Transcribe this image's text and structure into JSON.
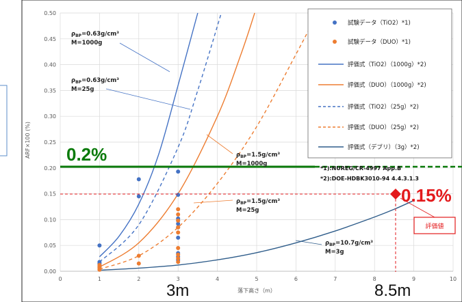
{
  "chart_data": {
    "type": "scatter",
    "xlabel": "落下高さ（m）",
    "ylabel": "ARF×100 (%)",
    "xlim": [
      0,
      10
    ],
    "ylim": [
      0,
      0.5
    ],
    "x_ticks": [
      "0",
      "1",
      "2",
      "3",
      "4",
      "5",
      "6",
      "7",
      "8",
      "9",
      "10"
    ],
    "y_ticks": [
      "0.00",
      "0.05",
      "0.10",
      "0.15",
      "0.20",
      "0.25",
      "0.30",
      "0.35",
      "0.40",
      "0.45",
      "0.50"
    ],
    "grid": true,
    "legend_position": "top-right",
    "colors": {
      "tio2": "#4472C4",
      "duo": "#ED7D31",
      "debris": "#2E5C8A",
      "threshold_green": "#0A7A0A",
      "red": "#E31A1C"
    },
    "series": [
      {
        "name": "試験データ（TiO2）*1)",
        "kind": "points",
        "color": "#4472C4",
        "points": [
          [
            1,
            0.05
          ],
          [
            1,
            0.018
          ],
          [
            1,
            0.015
          ],
          [
            1,
            0.012
          ],
          [
            1,
            0.008
          ],
          [
            2,
            0.178
          ],
          [
            2,
            0.145
          ],
          [
            3,
            0.193
          ],
          [
            3,
            0.148
          ],
          [
            3,
            0.102
          ],
          [
            3,
            0.098
          ],
          [
            3,
            0.092
          ],
          [
            3,
            0.085
          ],
          [
            3,
            0.065
          ],
          [
            3,
            0.035
          ],
          [
            3,
            0.028
          ],
          [
            3,
            0.022
          ]
        ]
      },
      {
        "name": "試験データ（DUO）*1)",
        "kind": "points",
        "color": "#ED7D31",
        "points": [
          [
            1,
            0.012
          ],
          [
            1,
            0.009
          ],
          [
            1,
            0.006
          ],
          [
            1,
            0.003
          ],
          [
            2,
            0.03
          ],
          [
            2,
            0.015
          ],
          [
            3,
            0.12
          ],
          [
            3,
            0.11
          ],
          [
            3,
            0.098
          ],
          [
            3,
            0.085
          ],
          [
            3,
            0.075
          ],
          [
            3,
            0.045
          ],
          [
            3,
            0.032
          ],
          [
            3,
            0.025
          ],
          [
            3,
            0.018
          ]
        ]
      },
      {
        "name": "評価式（TiO2）（1000g）*2)",
        "kind": "curve",
        "color": "#4472C4",
        "dash": false,
        "points": [
          [
            1,
            0.028
          ],
          [
            1.5,
            0.068
          ],
          [
            2,
            0.13
          ],
          [
            2.5,
            0.225
          ],
          [
            3,
            0.36
          ],
          [
            3.5,
            0.5
          ]
        ]
      },
      {
        "name": "評価式（DUO）（1000g）*2)",
        "kind": "curve",
        "color": "#ED7D31",
        "dash": false,
        "points": [
          [
            1,
            0.008
          ],
          [
            2,
            0.055
          ],
          [
            3,
            0.15
          ],
          [
            4,
            0.3
          ],
          [
            4.6,
            0.42
          ],
          [
            4.95,
            0.5
          ]
        ]
      },
      {
        "name": "評価式（TiO2）（25g）*2)",
        "kind": "curve",
        "color": "#4472C4",
        "dash": true,
        "points": [
          [
            1,
            0.018
          ],
          [
            2,
            0.09
          ],
          [
            3,
            0.24
          ],
          [
            3.5,
            0.35
          ],
          [
            4.1,
            0.5
          ]
        ]
      },
      {
        "name": "評価式（DUO）（25g）*2)",
        "kind": "curve",
        "color": "#ED7D31",
        "dash": true,
        "points": [
          [
            1,
            0.004
          ],
          [
            2,
            0.03
          ],
          [
            3,
            0.085
          ],
          [
            4,
            0.17
          ],
          [
            5,
            0.28
          ],
          [
            6,
            0.42
          ],
          [
            6.55,
            0.5
          ]
        ]
      },
      {
        "name": "評価式（デブリ）（3g）*2)",
        "kind": "curve",
        "color": "#2E5C8A",
        "dash": false,
        "points": [
          [
            1,
            0.002
          ],
          [
            2,
            0.006
          ],
          [
            3,
            0.012
          ],
          [
            4,
            0.022
          ],
          [
            5,
            0.036
          ],
          [
            6,
            0.055
          ],
          [
            7,
            0.078
          ],
          [
            8,
            0.105
          ],
          [
            8.5,
            0.12
          ],
          [
            9,
            0.137
          ]
        ]
      }
    ],
    "threshold_lines": [
      {
        "label": "0.2%",
        "y": 0.2,
        "color": "#0A7A0A",
        "style": "solid-then-dashed"
      },
      {
        "label": "0.15%",
        "y": 0.15,
        "color": "#E31A1C",
        "style": "dashed"
      }
    ],
    "evaluation_point": {
      "x": 8.5,
      "y": 0.15,
      "label": "評価値"
    }
  },
  "annotations": {
    "a1": {
      "rho": "ρ",
      "sub": "BP",
      "rest": "=0.63g/cm³",
      "m": "M=1000g"
    },
    "a2": {
      "rho": "ρ",
      "sub": "BP",
      "rest": "=0.63g/cm³",
      "m": "M=25g"
    },
    "a3": {
      "rho": "ρ",
      "sub": "BP",
      "rest": "=1.5g/cm³",
      "m": "M=1000g"
    },
    "a4": {
      "rho": "ρ",
      "sub": "BP",
      "rest": "=1.5g/cm³",
      "m": "M=25g"
    },
    "a5": {
      "rho": "ρ",
      "sub": "BP",
      "rest": "=10.7g/cm³",
      "m": "M=3g"
    }
  },
  "refs": {
    "r1": "*1):NUREG/CR-4997 App.B",
    "r2": "*2):DOE-HDBK3010-94 4.4.3.1.3"
  },
  "big_labels": {
    "x3": "3m",
    "x85": "8.5m",
    "green": "0.2%",
    "red": "0.15%"
  }
}
